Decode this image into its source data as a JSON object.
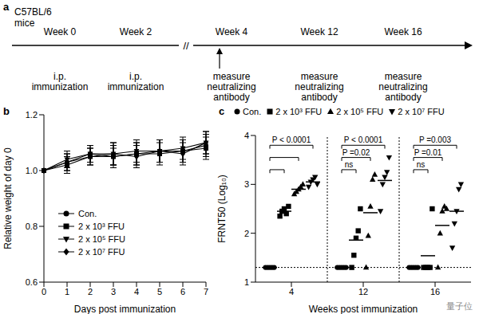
{
  "panel_a": {
    "label": "a",
    "subject": [
      "C57BL/6",
      "mice"
    ],
    "break": "//",
    "timepoints": [
      {
        "label": "Week 0",
        "event": [
          "i.p.",
          "immunization"
        ]
      },
      {
        "label": "Week 2",
        "event": [
          "i.p.",
          "immunization"
        ]
      },
      {
        "label": "Week 4",
        "event": [
          "measure",
          "neutralizing",
          "antibody"
        ],
        "arrow": true
      },
      {
        "label": "Week 12",
        "event": [
          "measure",
          "neutralizing",
          "antibody"
        ]
      },
      {
        "label": "Week 16",
        "event": [
          "measure",
          "neutralizing",
          "antibody"
        ]
      }
    ]
  },
  "chart_data": [
    {
      "panel": "b",
      "type": "line",
      "x_label": "Days post immunization",
      "y_label": "Relative weight of day 0",
      "x": [
        0,
        1,
        2,
        3,
        4,
        5,
        6,
        7
      ],
      "xlim": [
        0,
        7
      ],
      "xticks": [
        0,
        1,
        2,
        3,
        4,
        5,
        6,
        7
      ],
      "ylim": [
        0.6,
        1.2
      ],
      "yticks": [
        0.6,
        0.8,
        {
          "value": 1,
          "label": "1.0"
        },
        1.2
      ],
      "legend": "bottom-left",
      "series": [
        {
          "name": "Con.",
          "color": "#000000",
          "marker": "circle",
          "values": [
            1,
            1.03,
            1.06,
            1.05,
            1.06,
            1.07,
            1.07,
            1.09
          ],
          "errors": [
            0,
            0.03,
            0.03,
            0.04,
            0.04,
            0.04,
            0.04,
            0.04
          ]
        },
        {
          "name": "2 x 10³ FFU",
          "color": "#000000",
          "marker": "square",
          "values": [
            1,
            1.02,
            1.05,
            1.05,
            1.06,
            1.06,
            1.07,
            1.08
          ],
          "errors": [
            0,
            0.03,
            0.03,
            0.03,
            0.04,
            0.04,
            0.04,
            0.04
          ]
        },
        {
          "name": "2 x 10⁵ FFU",
          "color": "#000000",
          "marker": "triangle-down",
          "values": [
            1,
            1.04,
            1.06,
            1.06,
            1.07,
            1.07,
            1.08,
            1.1
          ],
          "errors": [
            0,
            0.03,
            0.03,
            0.04,
            0.04,
            0.04,
            0.04,
            0.04
          ]
        },
        {
          "name": "2 x 10⁷ FFU",
          "color": "#000000",
          "marker": "diamond",
          "values": [
            1,
            1.03,
            1.05,
            1.06,
            1.05,
            1.07,
            1.06,
            1.1
          ],
          "errors": [
            0,
            0.03,
            0.03,
            0.04,
            0.04,
            0.04,
            0.04,
            0.04
          ]
        }
      ]
    },
    {
      "panel": "c",
      "type": "scatter",
      "x_label": "Weeks post immunization",
      "y_label": "FRNT50 (Log₁₀)",
      "categories": [
        "4",
        "12",
        "16"
      ],
      "ylim": [
        1,
        4
      ],
      "yticks": [
        1,
        2,
        3,
        4
      ],
      "limit_of_detection": 1.3,
      "legend": "top",
      "series": [
        {
          "name": "Con.",
          "color": "#000000",
          "marker": "circle",
          "values": [
            [
              1.3,
              1.3,
              1.3,
              1.3,
              1.3
            ],
            [
              1.3,
              1.3,
              1.3,
              1.3,
              1.3
            ],
            [
              1.3,
              1.3,
              1.3,
              1.3,
              1.3
            ]
          ],
          "means": [
            1.3,
            1.3,
            1.3
          ]
        },
        {
          "name": "2 x 10³ FFU",
          "color": "#000000",
          "marker": "square",
          "values": [
            [
              2.35,
              2.45,
              2.5,
              2.4,
              2.55
            ],
            [
              1.3,
              1.55,
              1.9,
              2.05,
              2.5
            ],
            [
              1.3,
              1.3,
              1.3,
              1.3,
              2.5
            ]
          ],
          "means": [
            2.45,
            1.86,
            1.54
          ]
        },
        {
          "name": "2 x 10⁵ FFU",
          "color": "#000000",
          "marker": "triangle",
          "values": [
            [
              2.8,
              2.85,
              2.9,
              2.95,
              3.0
            ],
            [
              1.3,
              1.95,
              2.55,
              3.1,
              3.2
            ],
            [
              1.3,
              2.0,
              2.45,
              2.55,
              2.5
            ]
          ],
          "means": [
            2.9,
            2.42,
            2.16
          ]
        },
        {
          "name": "2 x 10⁷ FFU",
          "color": "#000000",
          "marker": "triangle-down",
          "values": [
            [
              2.95,
              3.05,
              3.1,
              3.15,
              3.0
            ],
            [
              2.45,
              3.0,
              3.15,
              3.25,
              3.55
            ],
            [
              1.7,
              2.2,
              2.45,
              2.9,
              3.0
            ]
          ],
          "means": [
            3.05,
            3.08,
            2.45
          ]
        }
      ],
      "comparisons": [
        [
          {
            "from": "Con.",
            "to": "2 x 10³ FFU",
            "label": null
          },
          {
            "from": "Con.",
            "to": "2 x 10⁵ FFU",
            "label": null
          },
          {
            "from": "Con.",
            "to": "2 x 10⁷ FFU",
            "label": "P < 0.0001"
          }
        ],
        [
          {
            "from": "Con.",
            "to": "2 x 10³ FFU",
            "label": "ns"
          },
          {
            "from": "Con.",
            "to": "2 x 10⁵ FFU",
            "label": "P =0.02"
          },
          {
            "from": "Con.",
            "to": "2 x 10⁷ FFU",
            "label": "P < 0.0001"
          }
        ],
        [
          {
            "from": "Con.",
            "to": "2 x 10³ FFU",
            "label": "ns"
          },
          {
            "from": "Con.",
            "to": "2 x 10⁵ FFU",
            "label": "P =0.01"
          },
          {
            "from": "Con.",
            "to": "2 x 10⁷ FFU",
            "label": "P =0.003"
          }
        ]
      ]
    }
  ],
  "watermark": "量子位"
}
